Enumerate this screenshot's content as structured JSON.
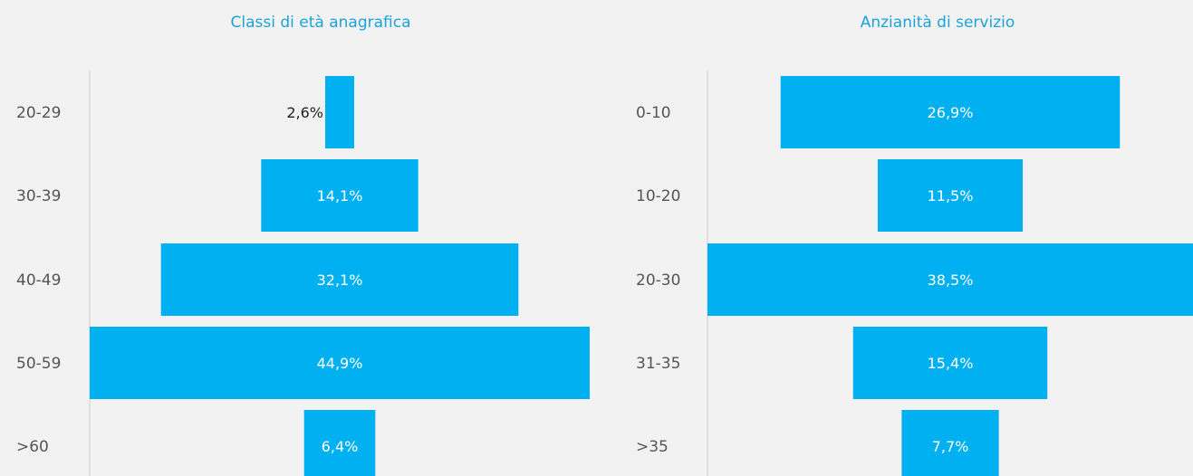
{
  "chart_data": [
    {
      "type": "bar",
      "orientation": "horizontal-funnel",
      "title": "Classi di età anagrafica",
      "categories": [
        "20-29",
        "30-39",
        "40-49",
        "50-59",
        ">60"
      ],
      "values": [
        2.6,
        14.1,
        32.1,
        44.9,
        6.4
      ],
      "value_labels": [
        "2,6%",
        "14,1%",
        "32,1%",
        "44,9%",
        "6,4%"
      ],
      "unit": "%",
      "color": "#00b0f0",
      "grid": false,
      "legend": "none"
    },
    {
      "type": "bar",
      "orientation": "horizontal-funnel",
      "title": "Anzianità di servizio",
      "categories": [
        "0-10",
        "10-20",
        "20-30",
        "31-35",
        ">35"
      ],
      "values": [
        26.9,
        11.5,
        38.5,
        15.4,
        7.7
      ],
      "value_labels": [
        "26,9%",
        "11,5%",
        "38,5%",
        "15,4%",
        "7,7%"
      ],
      "unit": "%",
      "color": "#00b0f0",
      "grid": false,
      "legend": "none"
    }
  ]
}
